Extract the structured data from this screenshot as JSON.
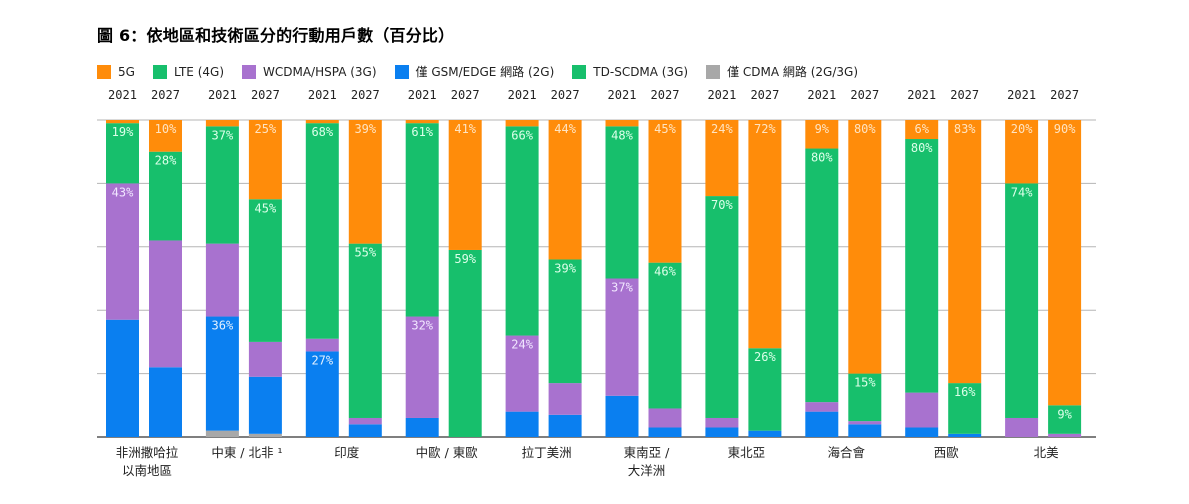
{
  "chart_data": {
    "type": "bar",
    "stacked": true,
    "title": "圖 6：依地區和技術區分的行動用戶數（百分比）",
    "xlabel": "",
    "ylabel": "",
    "ylim": [
      0,
      100
    ],
    "grid": true,
    "legend_position": "top-left",
    "legend": [
      {
        "key": "5G",
        "label": "5G",
        "color": "#ff8c0a"
      },
      {
        "key": "LTE",
        "label": "LTE (4G)",
        "color": "#17bf6c"
      },
      {
        "key": "WCDMA",
        "label": "WCDMA/HSPA (3G)",
        "color": "#a872cf"
      },
      {
        "key": "GSM",
        "label": "僅 GSM/EDGE 網路 (2G)",
        "color": "#0a7ff0"
      },
      {
        "key": "TDSCDMA",
        "label": "TD-SCDMA (3G)",
        "color": "#17bf6c"
      },
      {
        "key": "CDMA",
        "label": "僅 CDMA 網路 (2G/3G)",
        "color": "#a8a8a8"
      }
    ],
    "stack_order_bottom_to_top": [
      "CDMA",
      "GSM",
      "WCDMA",
      "TDSCDMA",
      "LTE",
      "5G"
    ],
    "groups": [
      {
        "region": "非洲撒哈拉以南地區",
        "label_lines": [
          "非洲撒哈拉",
          "以南地區"
        ],
        "bars": [
          {
            "year": "2021",
            "values": {
              "CDMA": 0,
              "GSM": 37,
              "WCDMA": 43,
              "TDSCDMA": 0,
              "LTE": 19,
              "5G": 1
            },
            "labels": {
              "LTE": "19%",
              "WCDMA": "43%"
            }
          },
          {
            "year": "2027",
            "values": {
              "CDMA": 0,
              "GSM": 22,
              "WCDMA": 40,
              "TDSCDMA": 0,
              "LTE": 28,
              "5G": 10
            },
            "labels": {
              "5G": "10%",
              "LTE": "28%"
            }
          }
        ]
      },
      {
        "region": "中東 / 北非¹",
        "label_lines": [
          "中東 / 北非 ¹"
        ],
        "bars": [
          {
            "year": "2021",
            "values": {
              "CDMA": 2,
              "GSM": 36,
              "WCDMA": 23,
              "TDSCDMA": 0,
              "LTE": 37,
              "5G": 2
            },
            "labels": {
              "LTE": "37%",
              "GSM": "36%"
            }
          },
          {
            "year": "2027",
            "values": {
              "CDMA": 1,
              "GSM": 18,
              "WCDMA": 11,
              "TDSCDMA": 0,
              "LTE": 45,
              "5G": 25
            },
            "labels": {
              "5G": "25%",
              "LTE": "45%"
            }
          }
        ]
      },
      {
        "region": "印度",
        "label_lines": [
          "印度"
        ],
        "bars": [
          {
            "year": "2021",
            "values": {
              "CDMA": 0,
              "GSM": 27,
              "WCDMA": 4,
              "TDSCDMA": 0,
              "LTE": 68,
              "5G": 1
            },
            "labels": {
              "LTE": "68%",
              "GSM": "27%"
            }
          },
          {
            "year": "2027",
            "values": {
              "CDMA": 0,
              "GSM": 4,
              "WCDMA": 2,
              "TDSCDMA": 0,
              "LTE": 55,
              "5G": 39
            },
            "labels": {
              "5G": "39%",
              "LTE": "55%"
            }
          }
        ]
      },
      {
        "region": "中歐 / 東歐",
        "label_lines": [
          "中歐 / 東歐"
        ],
        "bars": [
          {
            "year": "2021",
            "values": {
              "CDMA": 0,
              "GSM": 6,
              "WCDMA": 32,
              "TDSCDMA": 0,
              "LTE": 61,
              "5G": 1
            },
            "labels": {
              "LTE": "61%",
              "WCDMA": "32%"
            }
          },
          {
            "year": "2027",
            "values": {
              "CDMA": 0,
              "GSM": 0,
              "WCDMA": 0,
              "TDSCDMA": 0,
              "LTE": 59,
              "5G": 41
            },
            "labels": {
              "5G": "41%",
              "LTE": "59%"
            }
          }
        ]
      },
      {
        "region": "拉丁美洲",
        "label_lines": [
          "拉丁美洲"
        ],
        "bars": [
          {
            "year": "2021",
            "values": {
              "CDMA": 0,
              "GSM": 8,
              "WCDMA": 24,
              "TDSCDMA": 0,
              "LTE": 66,
              "5G": 2
            },
            "labels": {
              "LTE": "66%",
              "WCDMA": "24%"
            }
          },
          {
            "year": "2027",
            "values": {
              "CDMA": 0,
              "GSM": 7,
              "WCDMA": 10,
              "TDSCDMA": 0,
              "LTE": 39,
              "5G": 44
            },
            "labels": {
              "5G": "44%",
              "LTE": "39%"
            }
          }
        ]
      },
      {
        "region": "東南亞 / 大洋洲",
        "label_lines": [
          "東南亞 /",
          "大洋洲"
        ],
        "bars": [
          {
            "year": "2021",
            "values": {
              "CDMA": 0,
              "GSM": 13,
              "WCDMA": 37,
              "TDSCDMA": 0,
              "LTE": 48,
              "5G": 2
            },
            "labels": {
              "LTE": "48%",
              "WCDMA": "37%"
            }
          },
          {
            "year": "2027",
            "values": {
              "CDMA": 0,
              "GSM": 3,
              "WCDMA": 6,
              "TDSCDMA": 0,
              "LTE": 46,
              "5G": 45
            },
            "labels": {
              "5G": "45%",
              "LTE": "46%"
            }
          }
        ]
      },
      {
        "region": "東北亞",
        "label_lines": [
          "東北亞"
        ],
        "bars": [
          {
            "year": "2021",
            "values": {
              "CDMA": 0,
              "GSM": 3,
              "WCDMA": 3,
              "TDSCDMA": 0,
              "LTE": 70,
              "5G": 24
            },
            "labels": {
              "5G": "24%",
              "LTE": "70%"
            }
          },
          {
            "year": "2027",
            "values": {
              "CDMA": 0,
              "GSM": 2,
              "WCDMA": 0,
              "TDSCDMA": 0,
              "LTE": 26,
              "5G": 72
            },
            "labels": {
              "5G": "72%",
              "LTE": "26%"
            }
          }
        ]
      },
      {
        "region": "海合會",
        "label_lines": [
          "海合會"
        ],
        "bars": [
          {
            "year": "2021",
            "values": {
              "CDMA": 0,
              "GSM": 8,
              "WCDMA": 3,
              "TDSCDMA": 0,
              "LTE": 80,
              "5G": 9
            },
            "labels": {
              "5G": "9%",
              "LTE": "80%"
            }
          },
          {
            "year": "2027",
            "values": {
              "CDMA": 0,
              "GSM": 4,
              "WCDMA": 1,
              "TDSCDMA": 0,
              "LTE": 15,
              "5G": 80
            },
            "labels": {
              "5G": "80%",
              "LTE": "15%"
            }
          }
        ]
      },
      {
        "region": "西歐",
        "label_lines": [
          "西歐"
        ],
        "bars": [
          {
            "year": "2021",
            "values": {
              "CDMA": 0,
              "GSM": 3,
              "WCDMA": 11,
              "TDSCDMA": 0,
              "LTE": 80,
              "5G": 6
            },
            "labels": {
              "5G": "6%",
              "LTE": "80%"
            }
          },
          {
            "year": "2027",
            "values": {
              "CDMA": 0,
              "GSM": 1,
              "WCDMA": 0,
              "TDSCDMA": 0,
              "LTE": 16,
              "5G": 83
            },
            "labels": {
              "5G": "83%",
              "LTE": "16%"
            }
          }
        ]
      },
      {
        "region": "北美",
        "label_lines": [
          "北美"
        ],
        "bars": [
          {
            "year": "2021",
            "values": {
              "CDMA": 0,
              "GSM": 0,
              "WCDMA": 6,
              "TDSCDMA": 0,
              "LTE": 74,
              "5G": 20
            },
            "labels": {
              "5G": "20%",
              "LTE": "74%"
            }
          },
          {
            "year": "2027",
            "values": {
              "CDMA": 0,
              "GSM": 0,
              "WCDMA": 1,
              "TDSCDMA": 0,
              "LTE": 9,
              "5G": 90
            },
            "labels": {
              "5G": "90%",
              "LTE": "9%"
            }
          }
        ]
      }
    ]
  }
}
